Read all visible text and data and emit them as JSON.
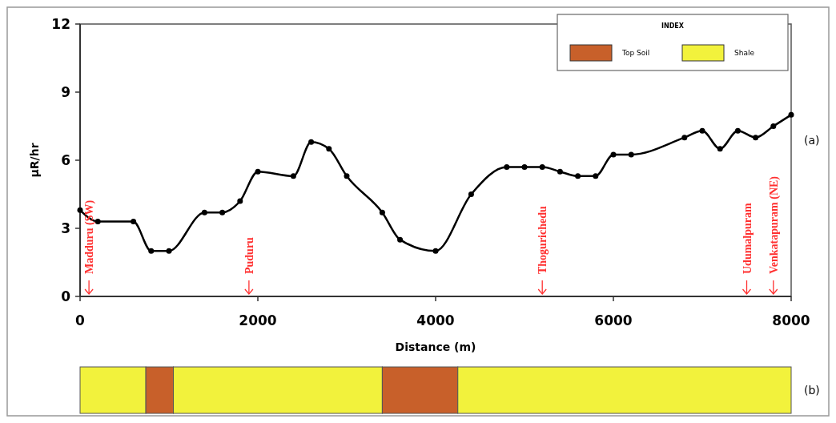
{
  "chart_data": [
    {
      "type": "line",
      "xlabel": "Distance (m)",
      "ylabel": "µR/hr",
      "xlim": [
        0,
        8000
      ],
      "xticks": [
        0,
        2000,
        4000,
        6000,
        8000
      ],
      "ylim": [
        0,
        12
      ],
      "yticks": [
        0,
        3,
        6,
        9,
        12
      ],
      "grid": false,
      "marker": "circle",
      "line_style": "solid",
      "x": [
        0,
        200,
        600,
        800,
        1000,
        1400,
        1600,
        1800,
        2000,
        2400,
        2600,
        2800,
        3000,
        3400,
        3600,
        4000,
        4400,
        4800,
        5000,
        5200,
        5400,
        5600,
        5800,
        6000,
        6200,
        6800,
        7000,
        7200,
        7400,
        7600,
        7800,
        8000
      ],
      "series": [
        {
          "color": "#000000",
          "values": [
            3.8,
            3.3,
            3.3,
            2.0,
            2.0,
            3.7,
            3.7,
            4.2,
            5.5,
            5.3,
            6.8,
            6.5,
            5.3,
            3.7,
            2.5,
            2.0,
            4.5,
            5.7,
            5.7,
            5.7,
            5.5,
            5.3,
            5.3,
            6.25,
            6.25,
            7.0,
            7.3,
            6.5,
            7.3,
            7.0,
            7.5,
            8.0
          ]
        }
      ],
      "ref_lines": [
        {
          "axis": "x",
          "value": 100,
          "label": "Madduru (SW)",
          "color": "#ff3030"
        },
        {
          "axis": "x",
          "value": 1900,
          "label": "Puduru",
          "color": "#ff3030"
        },
        {
          "axis": "x",
          "value": 5200,
          "label": "Thogurichedu",
          "color": "#ff3030"
        },
        {
          "axis": "x",
          "value": 7500,
          "label": "Udumalpuram",
          "color": "#ff3030"
        },
        {
          "axis": "x",
          "value": 7800,
          "label": "Venkatapuram (NE)",
          "color": "#ff3030"
        }
      ],
      "annotations": [
        "(a)"
      ]
    },
    {
      "type": "bar",
      "orientation": "horizontal",
      "stacked": true,
      "categories": [
        null
      ],
      "xlim": [
        0,
        8000
      ],
      "legend": "top right",
      "legend_title": "INDEX",
      "series": [
        {
          "color": "#f2f23c",
          "values": [
            740
          ]
        },
        {
          "name": "Top Soil",
          "color": "#c8602a",
          "values": [
            310
          ]
        },
        {
          "name": "Shale",
          "color": "#f2f23c",
          "values": [
            2350
          ]
        },
        {
          "color": "#c8602a",
          "values": [
            850
          ]
        },
        {
          "color": "#f2f23c",
          "values": [
            3750
          ]
        }
      ],
      "annotations": [
        "(b)"
      ]
    }
  ]
}
